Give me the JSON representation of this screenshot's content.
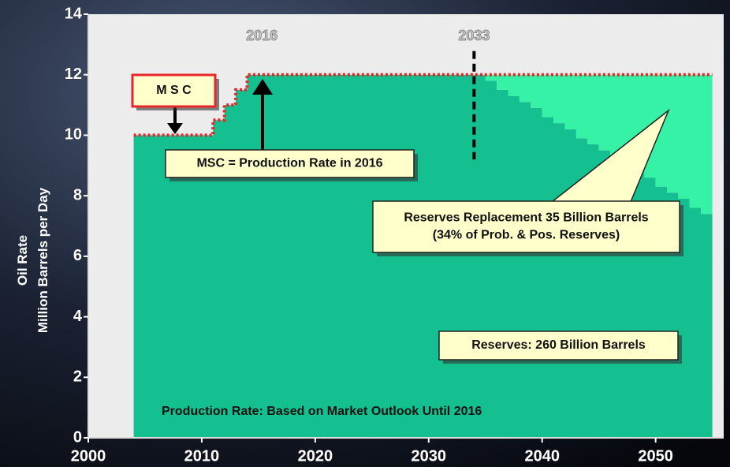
{
  "chart_data": {
    "type": "step-area",
    "y_label": [
      "Oil Rate",
      "Million Barrels per Day"
    ],
    "x": [
      2004,
      2005,
      2006,
      2007,
      2008,
      2009,
      2010,
      2011,
      2012,
      2013,
      2014,
      2015,
      2016,
      2017,
      2018,
      2019,
      2020,
      2021,
      2022,
      2023,
      2024,
      2025,
      2026,
      2027,
      2028,
      2029,
      2030,
      2031,
      2032,
      2033,
      2034,
      2035,
      2036,
      2037,
      2038,
      2039,
      2040,
      2041,
      2042,
      2043,
      2044,
      2045,
      2046,
      2047,
      2048,
      2049,
      2050,
      2051,
      2052,
      2053,
      2054,
      2055
    ],
    "series": [
      {
        "color": "#14c08f",
        "values": [
          10,
          10,
          10,
          10,
          10,
          10,
          10,
          10.5,
          11,
          11.5,
          12,
          12,
          12,
          12,
          12,
          12,
          12,
          12,
          12,
          12,
          12,
          12,
          12,
          12,
          12,
          12,
          12,
          12,
          12,
          12,
          12,
          11.8,
          11.5,
          11.3,
          11.1,
          10.9,
          10.6,
          10.4,
          10.2,
          9.9,
          9.7,
          9.5,
          9.2,
          9.0,
          8.8,
          8.6,
          8.3,
          8.1,
          7.9,
          7.6,
          7.4,
          7.2
        ]
      },
      {
        "color": "#36f2a6",
        "values": [
          0,
          0,
          0,
          0,
          0,
          0,
          0,
          0,
          0,
          0,
          0,
          0,
          0,
          0,
          0,
          0,
          0,
          0,
          0,
          0,
          0,
          0,
          0,
          0,
          0,
          0,
          0,
          0,
          0,
          0,
          0,
          0.2,
          0.5,
          0.7,
          0.9,
          1.1,
          1.4,
          1.6,
          1.8,
          2.1,
          2.3,
          2.5,
          2.8,
          3.0,
          3.2,
          3.4,
          3.7,
          3.9,
          4.1,
          4.4,
          4.6,
          4.8
        ]
      }
    ],
    "top_line": {
      "color": "#e8262a",
      "style": "dotted"
    },
    "xlim": [
      2000,
      2056
    ],
    "ylim": [
      0,
      14
    ],
    "xticks": [
      2000,
      2010,
      2020,
      2030,
      2040,
      2050
    ],
    "yticks": [
      0,
      2,
      4,
      6,
      8,
      10,
      12,
      14
    ],
    "grid": false,
    "markers": [
      {
        "label": "2016",
        "x": 2015.3
      },
      {
        "label": "2033",
        "x": 2034,
        "y_from": 12,
        "y_to": 9.2
      }
    ],
    "annotations": [
      {
        "lines": [
          "M S C"
        ]
      },
      {
        "lines": [
          "MSC = Production Rate in 2016"
        ]
      },
      {
        "lines": [
          "Reserves Replacement 35 Billion Barrels",
          "(34% of Prob. & Pos. Reserves)"
        ]
      },
      {
        "lines": [
          "Reserves: 260 Billion Barrels"
        ]
      },
      {
        "lines": [
          "Production Rate: Based on Market Outlook Until 2016"
        ]
      }
    ]
  }
}
